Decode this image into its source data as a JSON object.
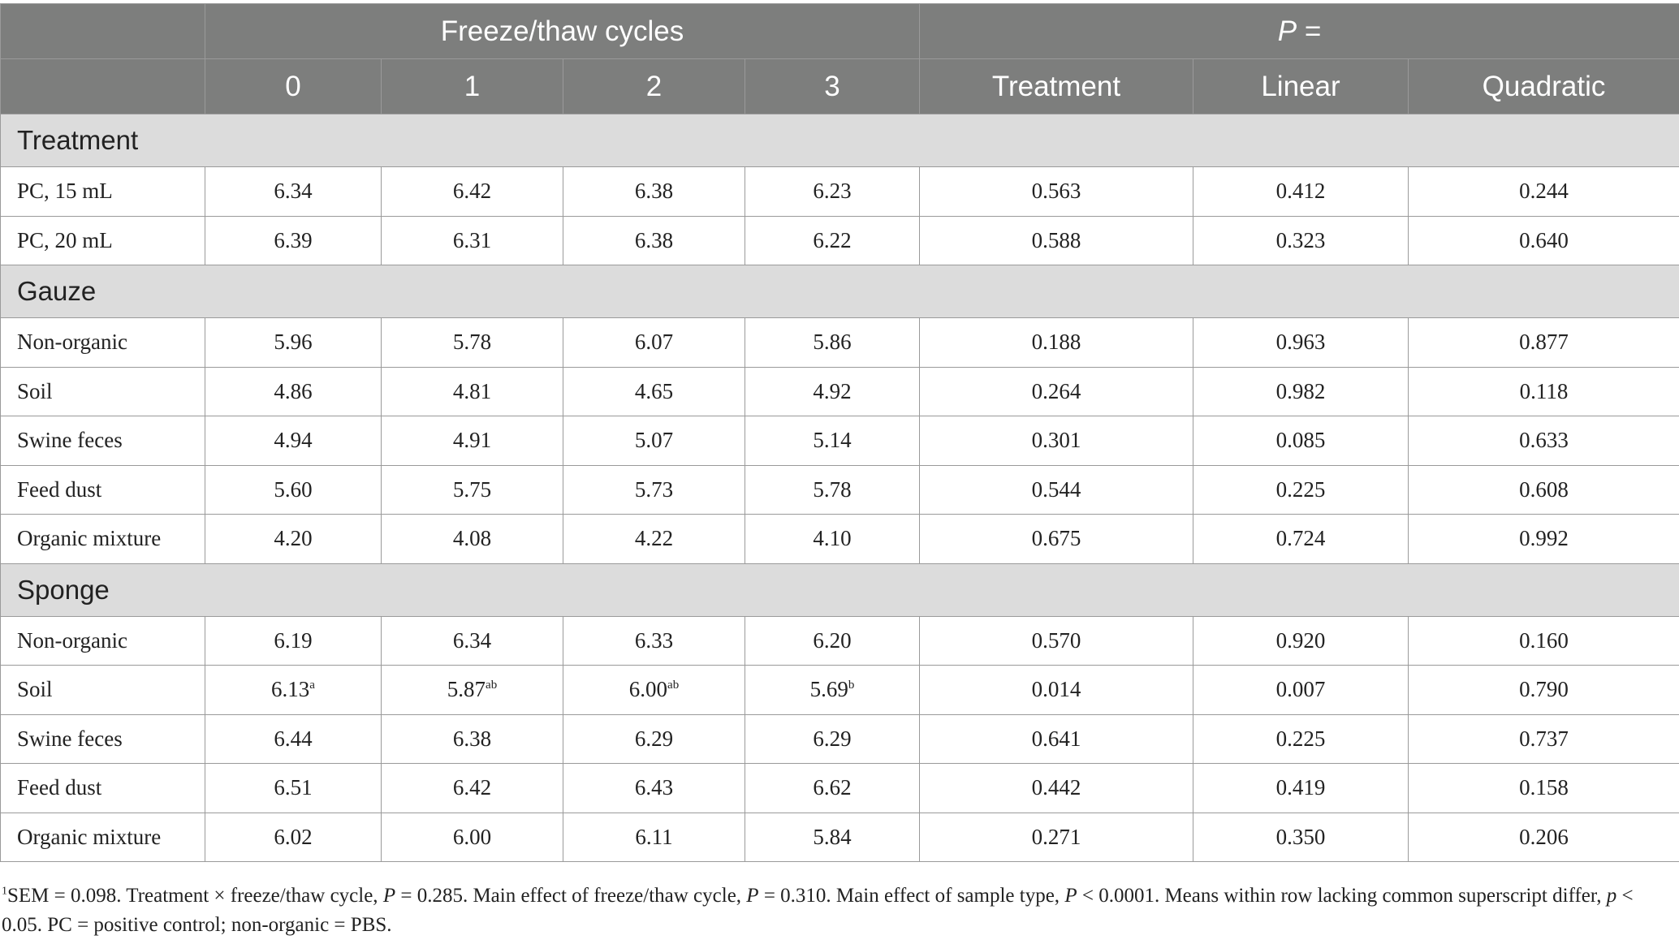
{
  "header": {
    "group_freeze": "Freeze/thaw cycles",
    "group_p_letter": "P",
    "group_p_suffix": " =",
    "cycles": [
      "0",
      "1",
      "2",
      "3"
    ],
    "p_cols": [
      "Treatment",
      "Linear",
      "Quadratic"
    ]
  },
  "sections": [
    {
      "title": "Treatment",
      "rows": [
        {
          "label": "PC, 15 mL",
          "values": [
            "6.34",
            "6.42",
            "6.38",
            "6.23"
          ],
          "sups": [
            "",
            "",
            "",
            ""
          ],
          "p": [
            "0.563",
            "0.412",
            "0.244"
          ]
        },
        {
          "label": "PC, 20 mL",
          "values": [
            "6.39",
            "6.31",
            "6.38",
            "6.22"
          ],
          "sups": [
            "",
            "",
            "",
            ""
          ],
          "p": [
            "0.588",
            "0.323",
            "0.640"
          ]
        }
      ]
    },
    {
      "title": "Gauze",
      "rows": [
        {
          "label": "Non-organic",
          "values": [
            "5.96",
            "5.78",
            "6.07",
            "5.86"
          ],
          "sups": [
            "",
            "",
            "",
            ""
          ],
          "p": [
            "0.188",
            "0.963",
            "0.877"
          ]
        },
        {
          "label": "Soil",
          "values": [
            "4.86",
            "4.81",
            "4.65",
            "4.92"
          ],
          "sups": [
            "",
            "",
            "",
            ""
          ],
          "p": [
            "0.264",
            "0.982",
            "0.118"
          ]
        },
        {
          "label": "Swine feces",
          "values": [
            "4.94",
            "4.91",
            "5.07",
            "5.14"
          ],
          "sups": [
            "",
            "",
            "",
            ""
          ],
          "p": [
            "0.301",
            "0.085",
            "0.633"
          ]
        },
        {
          "label": "Feed dust",
          "values": [
            "5.60",
            "5.75",
            "5.73",
            "5.78"
          ],
          "sups": [
            "",
            "",
            "",
            ""
          ],
          "p": [
            "0.544",
            "0.225",
            "0.608"
          ]
        },
        {
          "label": "Organic mixture",
          "values": [
            "4.20",
            "4.08",
            "4.22",
            "4.10"
          ],
          "sups": [
            "",
            "",
            "",
            ""
          ],
          "p": [
            "0.675",
            "0.724",
            "0.992"
          ]
        }
      ]
    },
    {
      "title": "Sponge",
      "rows": [
        {
          "label": "Non-organic",
          "values": [
            "6.19",
            "6.34",
            "6.33",
            "6.20"
          ],
          "sups": [
            "",
            "",
            "",
            ""
          ],
          "p": [
            "0.570",
            "0.920",
            "0.160"
          ]
        },
        {
          "label": "Soil",
          "values": [
            "6.13",
            "5.87",
            "6.00",
            "5.69"
          ],
          "sups": [
            "a",
            "ab",
            "ab",
            "b"
          ],
          "p": [
            "0.014",
            "0.007",
            "0.790"
          ]
        },
        {
          "label": "Swine feces",
          "values": [
            "6.44",
            "6.38",
            "6.29",
            "6.29"
          ],
          "sups": [
            "",
            "",
            "",
            ""
          ],
          "p": [
            "0.641",
            "0.225",
            "0.737"
          ]
        },
        {
          "label": "Feed dust",
          "values": [
            "6.51",
            "6.42",
            "6.43",
            "6.62"
          ],
          "sups": [
            "",
            "",
            "",
            ""
          ],
          "p": [
            "0.442",
            "0.419",
            "0.158"
          ]
        },
        {
          "label": "Organic mixture",
          "values": [
            "6.02",
            "6.00",
            "6.11",
            "5.84"
          ],
          "sups": [
            "",
            "",
            "",
            ""
          ],
          "p": [
            "0.271",
            "0.350",
            "0.206"
          ]
        }
      ]
    }
  ],
  "footnote": {
    "marker": "1",
    "t1": "SEM = 0.098. Treatment × freeze/thaw cycle, ",
    "p1": "P",
    "t2": " = 0.285. Main effect of freeze/thaw cycle, ",
    "p2": "P",
    "t3": " = 0.310. Main effect of sample type, ",
    "p3": "P",
    "t4": " < 0.0001. Means within row lacking common superscript differ, ",
    "p4": "p",
    "t5": " < 0.05. PC = positive control; non-organic = PBS."
  }
}
